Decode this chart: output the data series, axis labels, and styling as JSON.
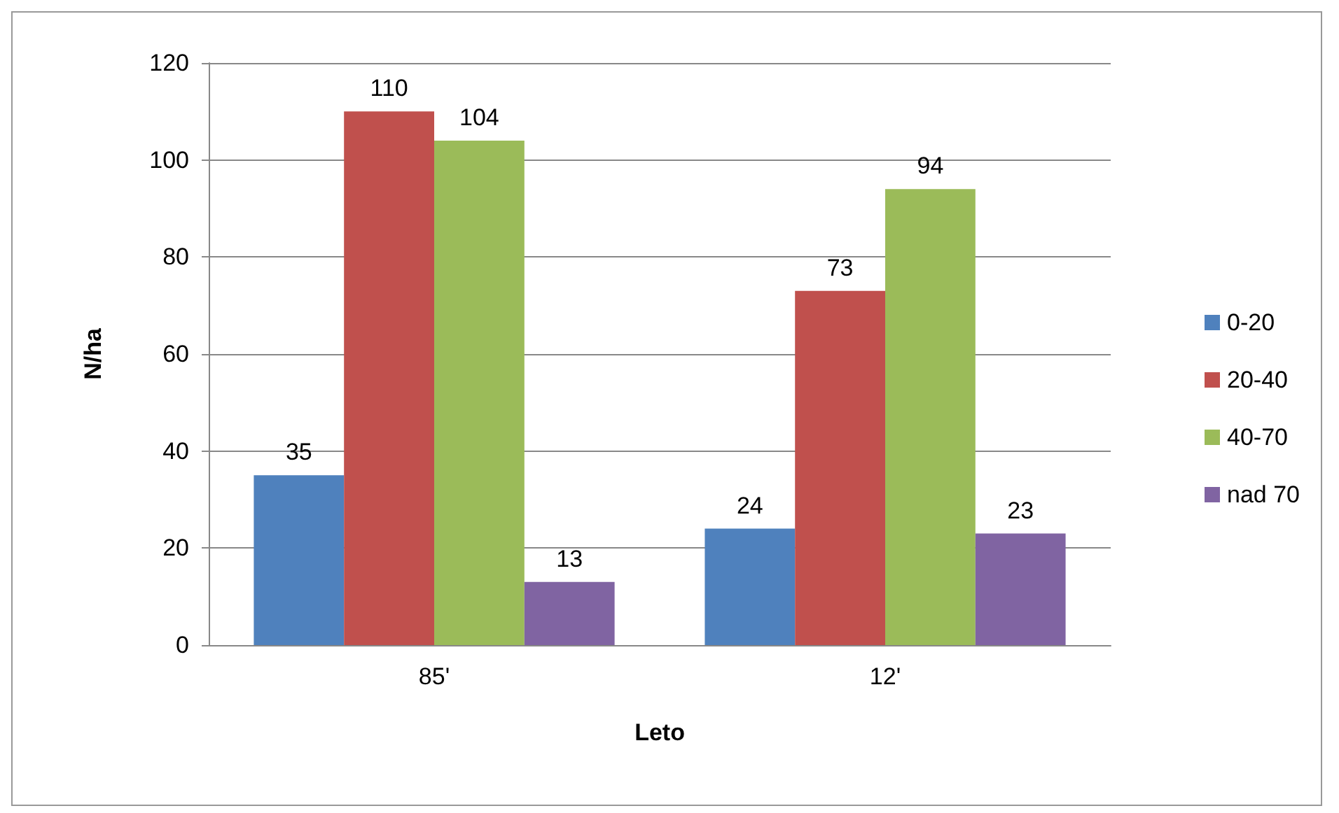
{
  "chart_data": {
    "type": "bar",
    "xlabel": "Leto",
    "ylabel": "N/ha",
    "categories": [
      "85'",
      "12'"
    ],
    "series": [
      {
        "name": "0-20",
        "color": "#4f81bd",
        "values": [
          35,
          24
        ]
      },
      {
        "name": "20-40",
        "color": "#c0504d",
        "values": [
          110,
          73
        ]
      },
      {
        "name": "40-70",
        "color": "#9bbb59",
        "values": [
          104,
          94
        ]
      },
      {
        "name": "nad 70",
        "color": "#8064a2",
        "values": [
          13,
          23
        ]
      }
    ],
    "ylim": [
      0,
      120
    ],
    "yticks": [
      0,
      20,
      40,
      60,
      80,
      100,
      120
    ],
    "grid": "y",
    "legend": "right",
    "data_labels": true
  }
}
